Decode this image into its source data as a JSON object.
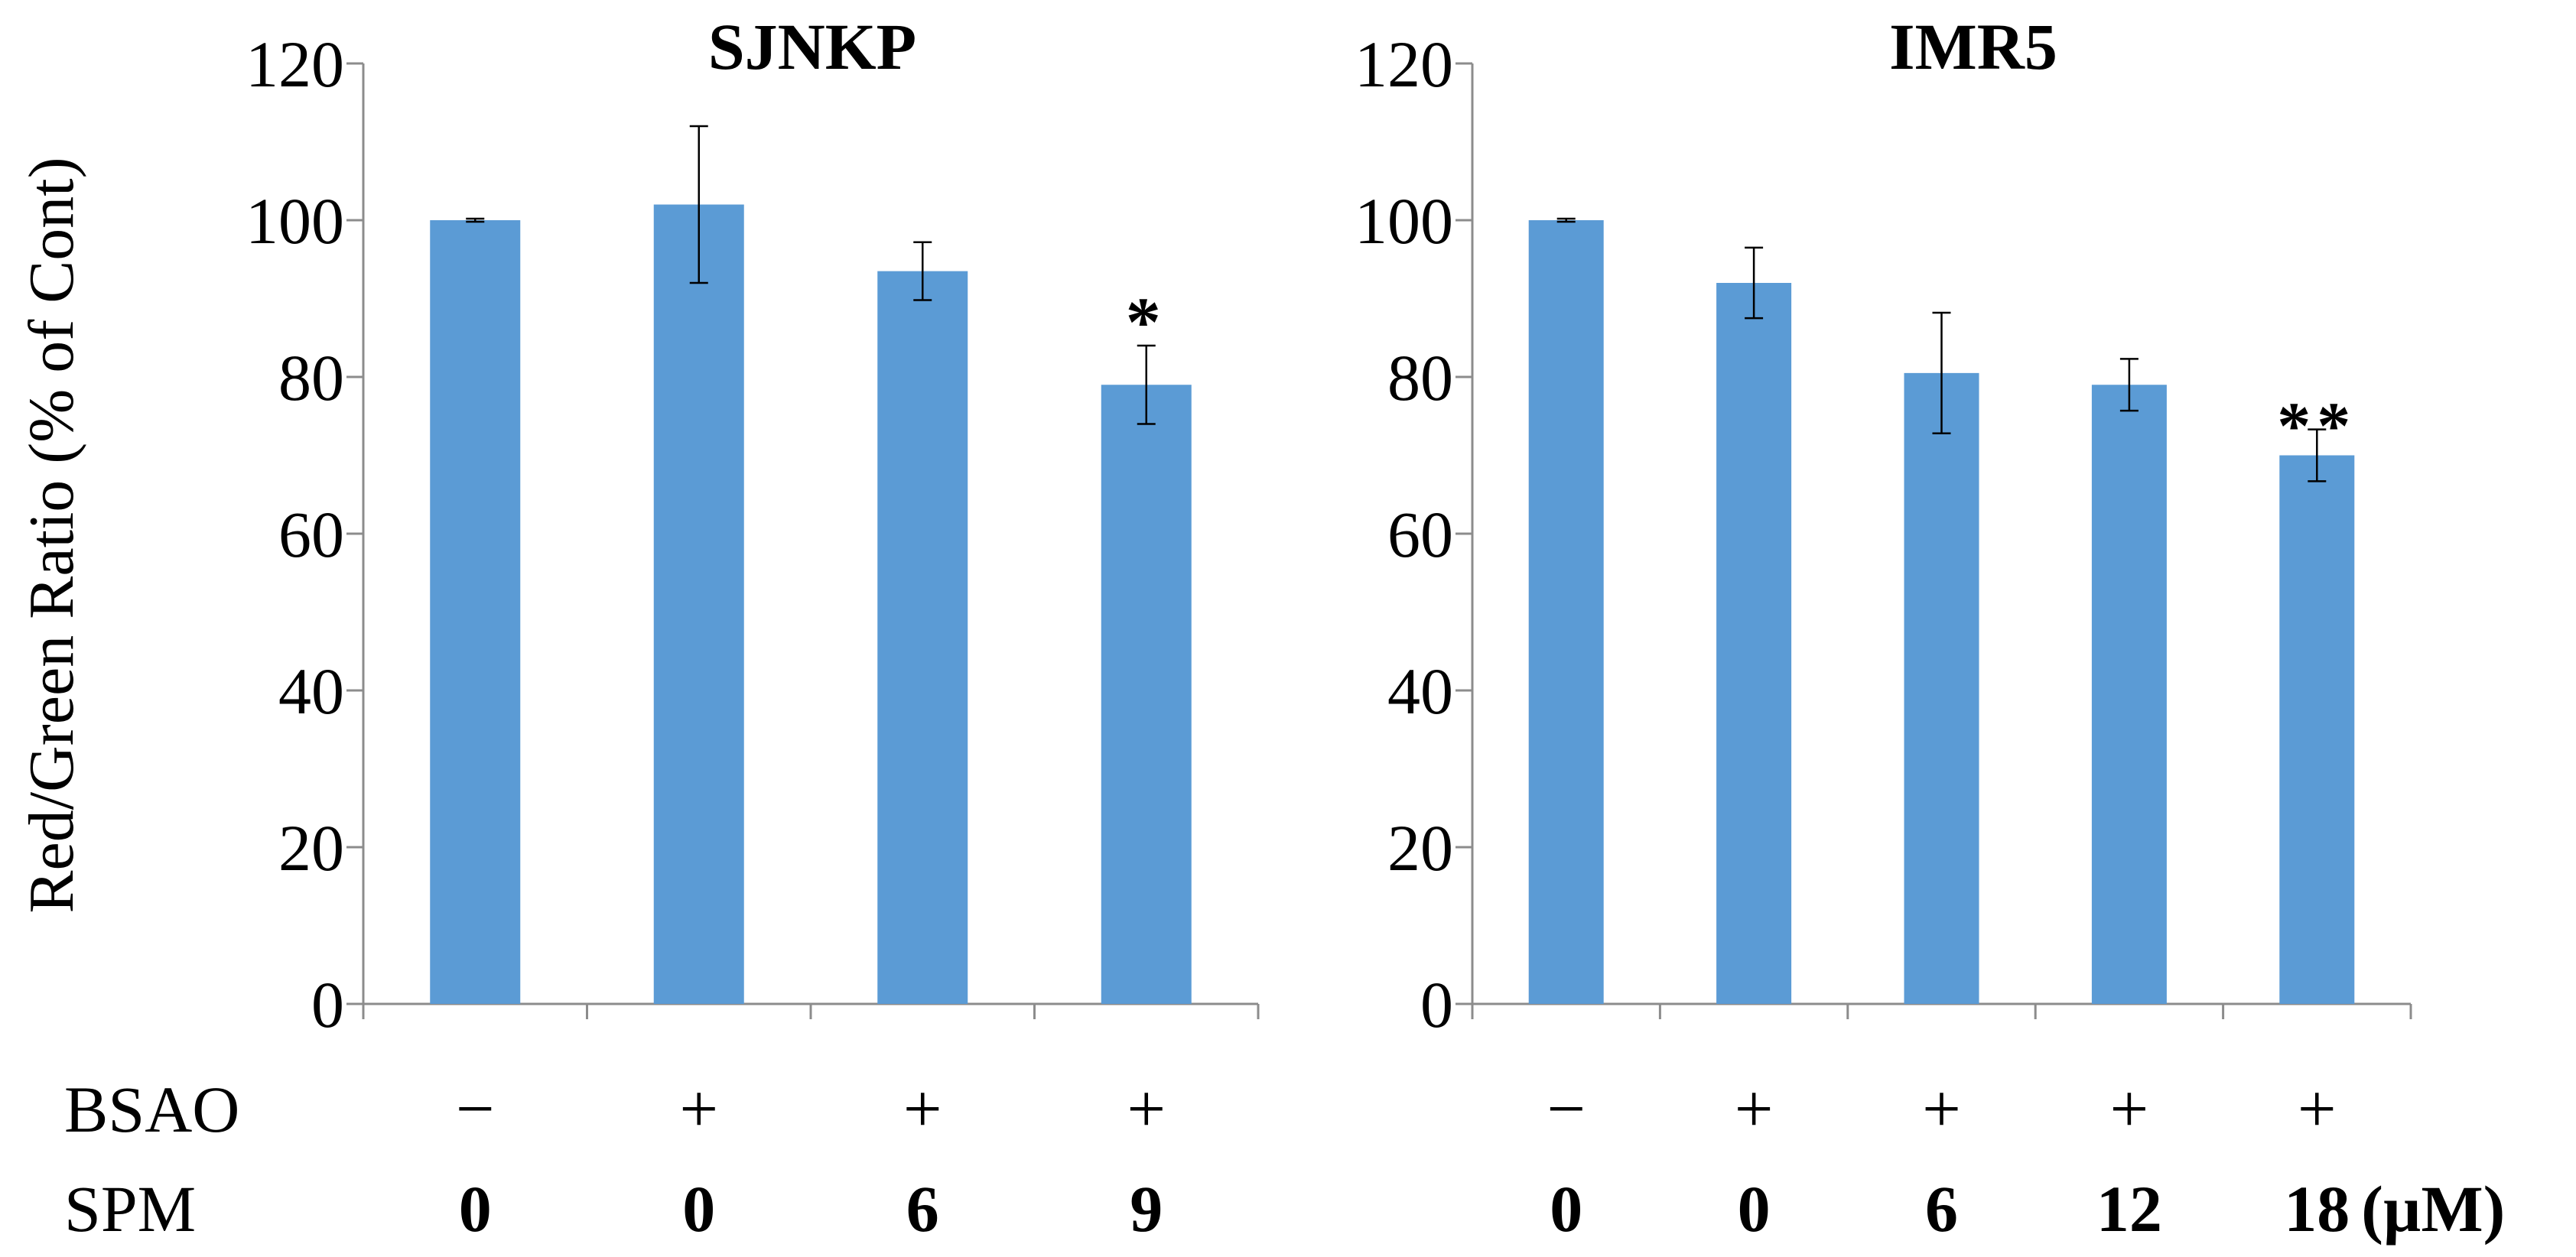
{
  "colors": {
    "bar": "#5B9BD5",
    "axis": "#8C8C8C",
    "text": "#000000",
    "error": "#000000"
  },
  "ylabel": "Red/Green Ratio (% of Cont)",
  "row_labels": {
    "bsao": "BSAO",
    "spm": "SPM"
  },
  "unit_label": "(µM)",
  "chart_data": [
    {
      "type": "bar",
      "title": "SJNKP",
      "ylabel": "Red/Green Ratio (% of Cont)",
      "ylim": [
        0,
        120
      ],
      "yticks": [
        "0",
        "20",
        "40",
        "60",
        "80",
        "100",
        "120"
      ],
      "categories": [
        "− / 0",
        "+ / 0",
        "+ / 6",
        "+ / 9"
      ],
      "bsao": [
        "−",
        "+",
        "+",
        "+"
      ],
      "spm": [
        "0",
        "0",
        "6",
        "9"
      ],
      "values": [
        100,
        102,
        93.5,
        79
      ],
      "errors": [
        0.2,
        10,
        3.7,
        5
      ],
      "significance": [
        "",
        "",
        "",
        "*"
      ],
      "grid": false
    },
    {
      "type": "bar",
      "title": "IMR5",
      "ylim": [
        0,
        120
      ],
      "yticks": [
        "0",
        "20",
        "40",
        "60",
        "80",
        "100",
        "120"
      ],
      "categories": [
        "− / 0",
        "+ / 0",
        "+ / 6",
        "+ / 12",
        "+ / 18"
      ],
      "bsao": [
        "−",
        "+",
        "+",
        "+",
        "+"
      ],
      "spm": [
        "0",
        "0",
        "6",
        "12",
        "18"
      ],
      "values": [
        100,
        92,
        80.5,
        79,
        70
      ],
      "errors": [
        0.2,
        4.5,
        7.7,
        3.3,
        3.3
      ],
      "significance": [
        "",
        "",
        "",
        "",
        "**"
      ],
      "grid": false
    }
  ]
}
